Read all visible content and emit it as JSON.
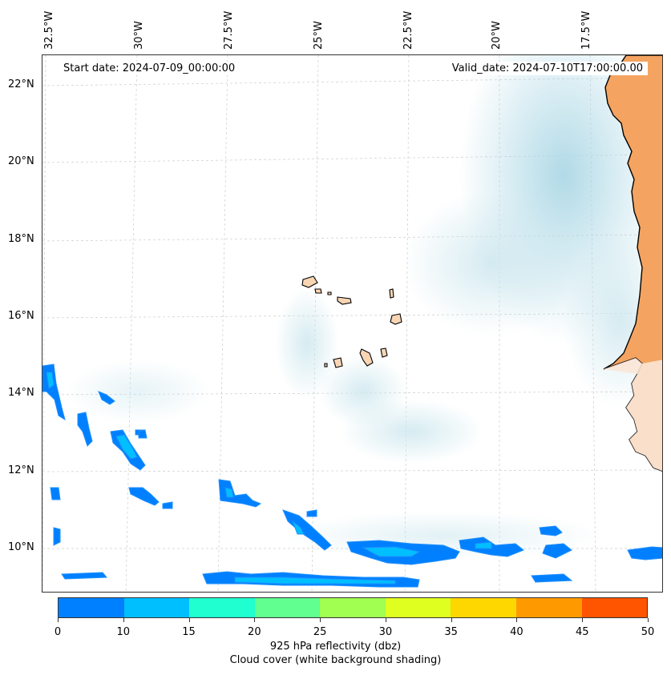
{
  "map": {
    "start_date": "Start date: 2024-07-09_00:00:00",
    "valid_date": "Valid_date: 2024-07-10T17:00:00.00",
    "longitude_labels": [
      "32.5°W",
      "30°W",
      "27.5°W",
      "25°W",
      "22.5°W",
      "20°W",
      "17.5°W"
    ],
    "latitude_labels": [
      "22°N",
      "20°N",
      "18°N",
      "16°N",
      "14°N",
      "12°N",
      "10°N"
    ],
    "land_colors": {
      "africa": "#f4a460",
      "islands": "#f8d5b5"
    },
    "cloud_color": "#add8e6",
    "reflectivity_color_low": "#1e90ff"
  },
  "colorbar": {
    "colors": [
      "#0080ff",
      "#00bfff",
      "#20ffd0",
      "#60ff90",
      "#a0ff50",
      "#dfff20",
      "#ffd700",
      "#ff9900",
      "#ff5500"
    ],
    "ticks": [
      "0",
      "10",
      "15",
      "20",
      "25",
      "30",
      "35",
      "40",
      "45",
      "50"
    ],
    "label_line1": "925 hPa reflectivity (dbz)",
    "label_line2": "Cloud cover (white background shading)"
  }
}
